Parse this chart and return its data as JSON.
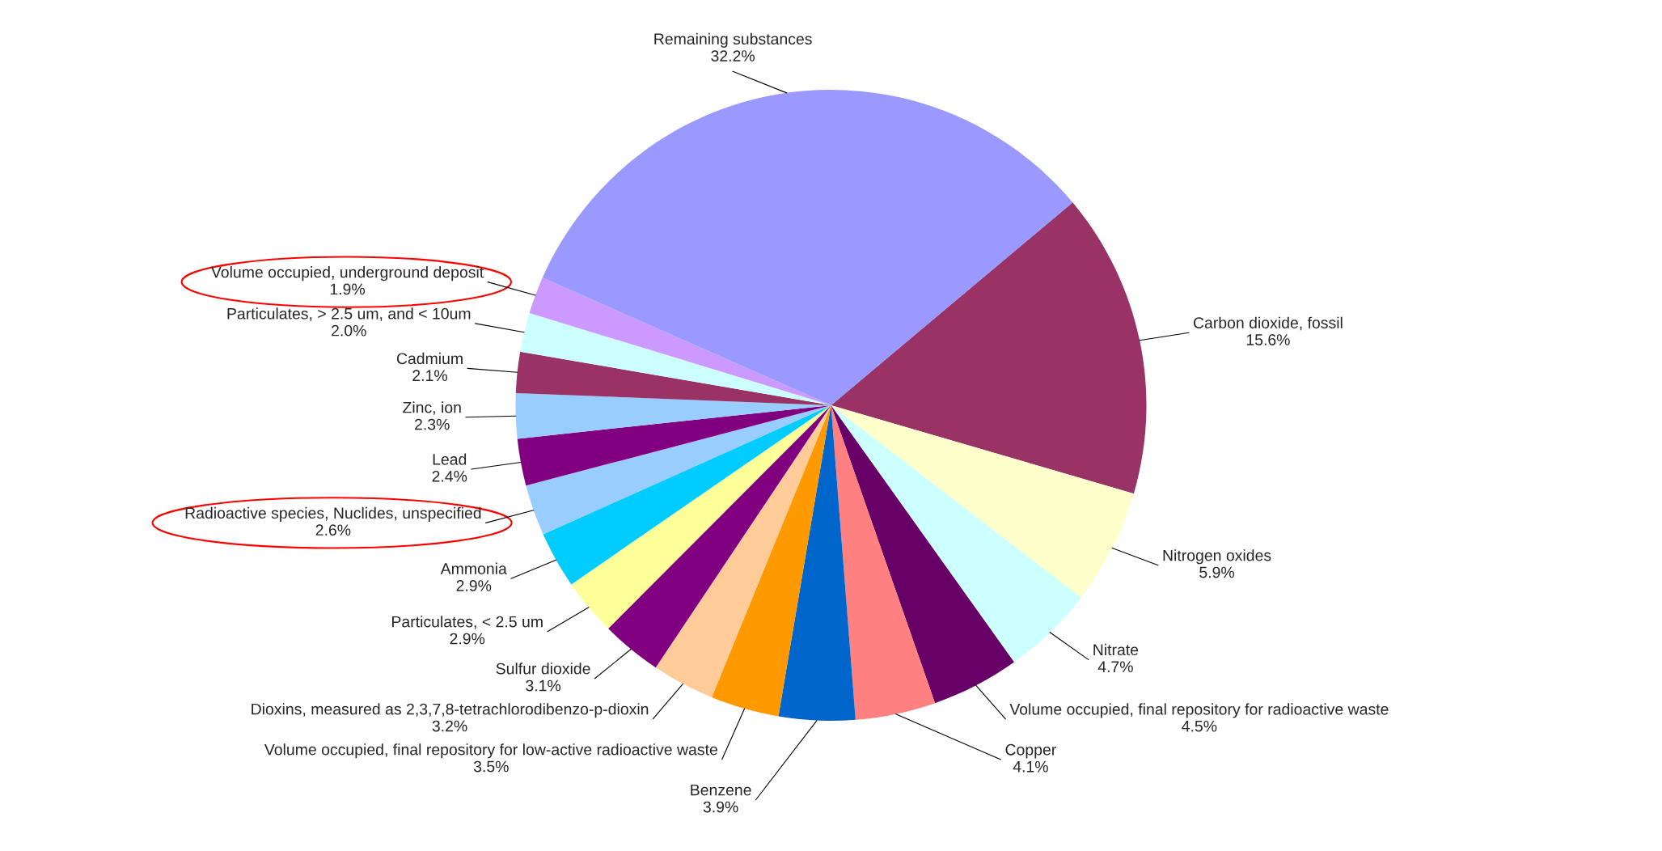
{
  "chart_data": {
    "type": "pie",
    "categories": [
      "Carbon dioxide, fossil",
      "Nitrogen oxides",
      "Nitrate",
      "Volume occupied, final repository for radioactive waste",
      "Copper",
      "Benzene",
      "Volume occupied, final repository for low-active radioactive waste",
      "Dioxins, measured as 2,3,7,8-tetrachlorodibenzo-p-dioxin",
      "Sulfur dioxide",
      "Particulates, < 2.5 um",
      "Ammonia",
      "Radioactive species, Nuclides, unspecified",
      "Lead",
      "Zinc, ion",
      "Cadmium",
      "Particulates, > 2.5 um, and < 10um",
      "Volume occupied, underground deposit",
      "Remaining substances"
    ],
    "values": [
      15.6,
      5.9,
      4.7,
      4.5,
      4.1,
      3.9,
      3.5,
      3.2,
      3.1,
      2.9,
      2.9,
      2.6,
      2.4,
      2.3,
      2.1,
      2.0,
      1.9,
      32.2
    ],
    "colors": [
      "#993366",
      "#ffffcc",
      "#ccffff",
      "#660066",
      "#ff8080",
      "#0066cc",
      "#ff9900",
      "#ffcc99",
      "#800080",
      "#ffff99",
      "#00ccff",
      "#99ccff",
      "#800080",
      "#99ccff",
      "#993366",
      "#ccffff",
      "#cc99ff",
      "#9999ff"
    ],
    "value_labels": [
      "15.6%",
      "5.9%",
      "4.7%",
      "4.5%",
      "4.1%",
      "3.9%",
      "3.5%",
      "3.2%",
      "3.1%",
      "2.9%",
      "2.9%",
      "2.6%",
      "2.4%",
      "2.3%",
      "2.1%",
      "2.0%",
      "1.9%",
      "32.2%"
    ]
  }
}
